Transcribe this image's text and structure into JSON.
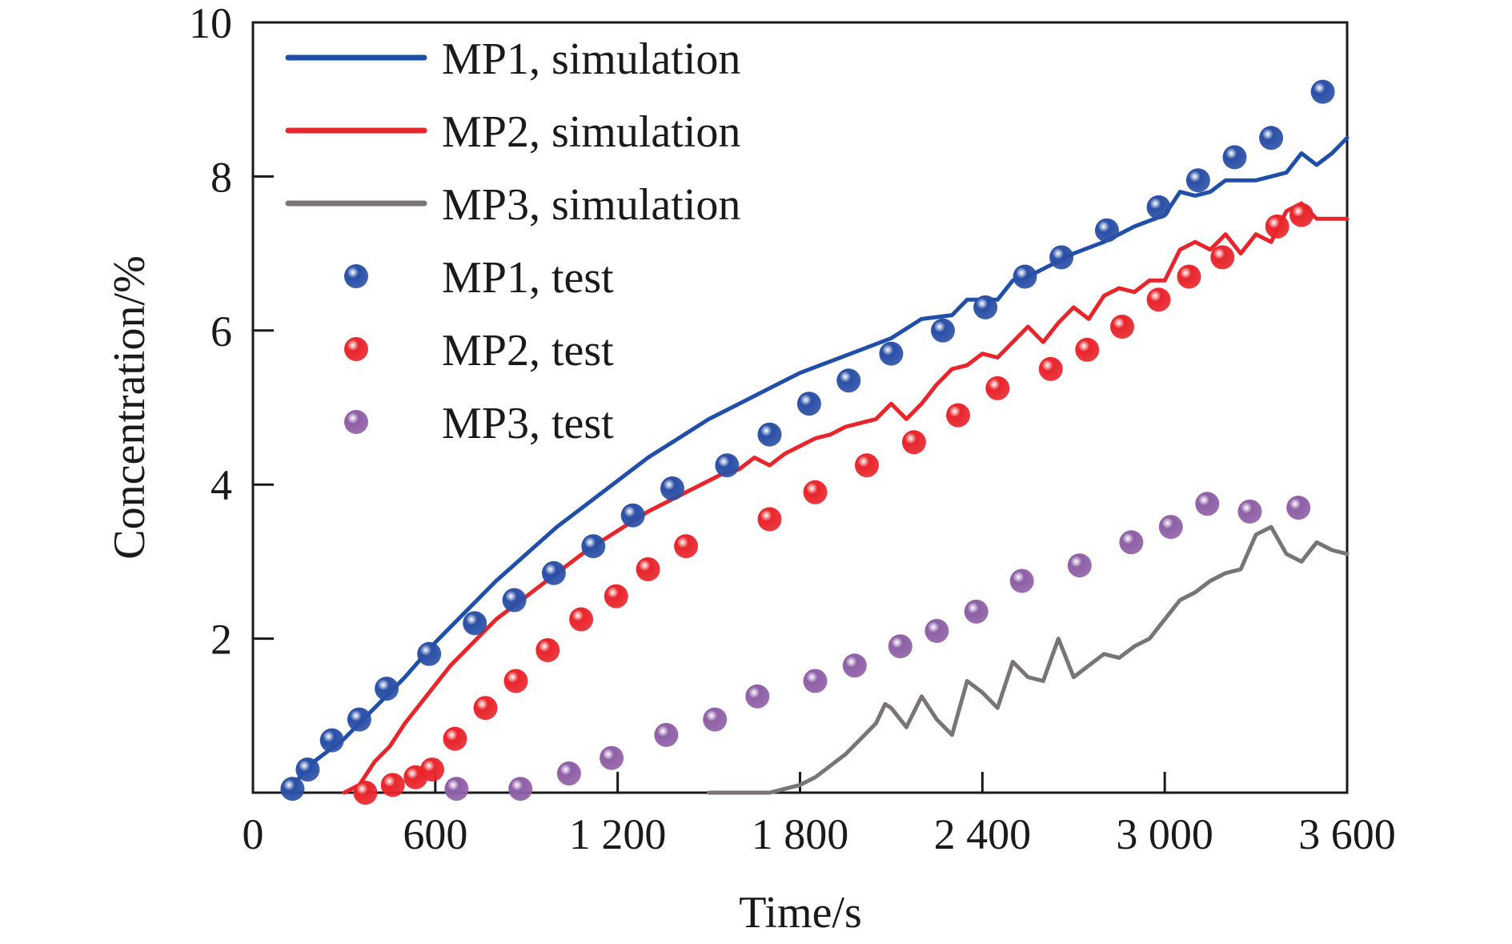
{
  "chart_data": {
    "type": "line",
    "title": "",
    "xlabel": "Time/s",
    "ylabel": "Concentration/%",
    "xlim": [
      0,
      3600
    ],
    "ylim": [
      0,
      10
    ],
    "x_ticks": [
      0,
      600,
      1200,
      1800,
      2400,
      3000,
      3600
    ],
    "x_tick_labels": [
      "0",
      "600",
      "1 200",
      "1 800",
      "2 400",
      "3 000",
      "3 600"
    ],
    "y_ticks": [
      2,
      4,
      6,
      8,
      10
    ],
    "y_tick_labels": [
      "2",
      "4",
      "6",
      "8",
      "10"
    ],
    "grid": false,
    "legend_position": "top-left",
    "series": [
      {
        "name": "MP1, simulation",
        "kind": "line",
        "color": "#1f4fa8",
        "x": [
          120,
          200,
          300,
          400,
          500,
          600,
          700,
          800,
          900,
          1000,
          1100,
          1200,
          1300,
          1400,
          1500,
          1600,
          1700,
          1800,
          1900,
          2000,
          2100,
          2200,
          2300,
          2350,
          2400,
          2450,
          2500,
          2550,
          2600,
          2700,
          2800,
          2900,
          3000,
          3050,
          3100,
          3150,
          3200,
          3250,
          3300,
          3350,
          3400,
          3450,
          3500,
          3550,
          3600
        ],
        "y": [
          0.05,
          0.4,
          0.7,
          1.1,
          1.5,
          1.95,
          2.35,
          2.75,
          3.1,
          3.45,
          3.75,
          4.05,
          4.35,
          4.6,
          4.85,
          5.05,
          5.25,
          5.45,
          5.6,
          5.75,
          5.9,
          6.15,
          6.2,
          6.4,
          6.4,
          6.4,
          6.65,
          6.7,
          6.8,
          7.0,
          7.15,
          7.35,
          7.5,
          7.8,
          7.75,
          7.8,
          7.95,
          7.95,
          7.95,
          8.0,
          8.05,
          8.3,
          8.15,
          8.3,
          8.5
        ]
      },
      {
        "name": "MP2, simulation",
        "kind": "line",
        "color": "#e8252b",
        "x": [
          300,
          350,
          400,
          450,
          500,
          550,
          600,
          650,
          700,
          750,
          800,
          850,
          900,
          950,
          1000,
          1100,
          1200,
          1300,
          1400,
          1500,
          1550,
          1600,
          1650,
          1700,
          1750,
          1800,
          1850,
          1900,
          1950,
          2000,
          2050,
          2100,
          2150,
          2200,
          2250,
          2300,
          2350,
          2400,
          2450,
          2500,
          2550,
          2600,
          2650,
          2700,
          2750,
          2800,
          2850,
          2900,
          2950,
          3000,
          3050,
          3100,
          3150,
          3200,
          3250,
          3300,
          3350,
          3400,
          3450,
          3500,
          3550,
          3600
        ],
        "y": [
          0.0,
          0.1,
          0.4,
          0.6,
          0.9,
          1.15,
          1.4,
          1.65,
          1.85,
          2.05,
          2.25,
          2.4,
          2.55,
          2.7,
          2.85,
          3.15,
          3.4,
          3.65,
          3.85,
          4.05,
          4.15,
          4.2,
          4.35,
          4.25,
          4.4,
          4.5,
          4.6,
          4.65,
          4.75,
          4.8,
          4.85,
          5.05,
          4.85,
          5.05,
          5.3,
          5.5,
          5.55,
          5.7,
          5.65,
          5.85,
          6.05,
          5.85,
          6.1,
          6.3,
          6.15,
          6.45,
          6.55,
          6.5,
          6.65,
          6.65,
          7.05,
          7.15,
          7.05,
          7.25,
          7.0,
          7.25,
          7.15,
          7.55,
          7.65,
          7.45,
          7.45,
          7.45
        ]
      },
      {
        "name": "MP3, simulation",
        "kind": "line",
        "color": "#7a7377",
        "x": [
          1500,
          1600,
          1700,
          1750,
          1800,
          1850,
          1900,
          1950,
          2000,
          2050,
          2080,
          2100,
          2150,
          2200,
          2250,
          2300,
          2350,
          2400,
          2450,
          2500,
          2550,
          2600,
          2650,
          2700,
          2750,
          2800,
          2850,
          2900,
          2950,
          3000,
          3050,
          3100,
          3150,
          3200,
          3250,
          3300,
          3350,
          3400,
          3450,
          3500,
          3550,
          3600
        ],
        "y": [
          0.0,
          0.0,
          0.0,
          0.05,
          0.1,
          0.2,
          0.35,
          0.5,
          0.7,
          0.9,
          1.15,
          1.1,
          0.85,
          1.25,
          0.95,
          0.75,
          1.45,
          1.3,
          1.1,
          1.7,
          1.5,
          1.45,
          2.0,
          1.5,
          1.65,
          1.8,
          1.75,
          1.9,
          2.0,
          2.25,
          2.5,
          2.6,
          2.75,
          2.85,
          2.9,
          3.35,
          3.45,
          3.1,
          3.0,
          3.25,
          3.15,
          3.1
        ]
      },
      {
        "name": "MP1, test",
        "kind": "scatter",
        "color": "#2a4fa6",
        "x": [
          130,
          180,
          260,
          350,
          440,
          580,
          730,
          860,
          990,
          1120,
          1250,
          1380,
          1560,
          1700,
          1830,
          1960,
          2100,
          2270,
          2410,
          2540,
          2660,
          2810,
          2980,
          3110,
          3230,
          3350,
          3520
        ],
        "y": [
          0.05,
          0.3,
          0.68,
          0.95,
          1.35,
          1.8,
          2.2,
          2.5,
          2.85,
          3.2,
          3.6,
          3.95,
          4.25,
          4.65,
          5.05,
          5.35,
          5.7,
          6.0,
          6.3,
          6.7,
          6.95,
          7.3,
          7.6,
          7.95,
          8.25,
          8.5,
          9.1
        ]
      },
      {
        "name": "MP2, test",
        "kind": "scatter",
        "color": "#e8252b",
        "x": [
          370,
          460,
          535,
          590,
          665,
          765,
          865,
          970,
          1080,
          1195,
          1300,
          1425,
          1700,
          1850,
          2020,
          2175,
          2320,
          2450,
          2625,
          2745,
          2860,
          2980,
          3080,
          3190,
          3370,
          3450
        ],
        "y": [
          0.0,
          0.1,
          0.2,
          0.3,
          0.7,
          1.1,
          1.45,
          1.85,
          2.25,
          2.55,
          2.9,
          3.2,
          3.55,
          3.9,
          4.25,
          4.55,
          4.9,
          5.25,
          5.5,
          5.75,
          6.05,
          6.4,
          6.7,
          6.95,
          7.35,
          7.5
        ]
      },
      {
        "name": "MP3, test",
        "kind": "scatter",
        "color": "#8e5fa6",
        "x": [
          670,
          880,
          1040,
          1180,
          1360,
          1520,
          1660,
          1850,
          1980,
          2130,
          2250,
          2380,
          2530,
          2720,
          2890,
          3020,
          3140,
          3280,
          3440
        ],
        "y": [
          0.05,
          0.05,
          0.25,
          0.45,
          0.75,
          0.95,
          1.25,
          1.45,
          1.65,
          1.9,
          2.1,
          2.35,
          2.75,
          2.95,
          3.25,
          3.45,
          3.75,
          3.65,
          3.7
        ]
      }
    ]
  }
}
